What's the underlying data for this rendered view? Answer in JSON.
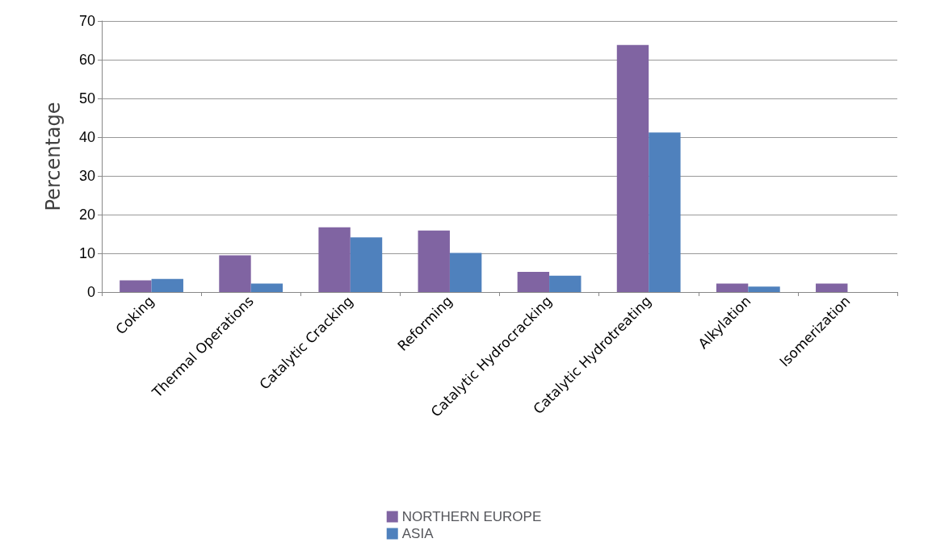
{
  "chart_data": {
    "type": "bar",
    "ylabel": "Percentage",
    "categories": [
      "Coking",
      "Thermal Operations",
      "Catalytic Cracking",
      "Reforming",
      "Catalytic Hydrocracking",
      "Catalytic Hydrotreating",
      "Alkylation",
      "Isomerization"
    ],
    "series": [
      {
        "name": "NORTHERN EUROPE",
        "color": "#8064a2",
        "values": [
          3.0,
          9.5,
          16.7,
          15.9,
          5.2,
          63.8,
          2.2,
          2.2
        ]
      },
      {
        "name": "ASIA",
        "color": "#4f81bd",
        "values": [
          3.4,
          2.2,
          14.1,
          10.1,
          4.2,
          41.2,
          1.4,
          0
        ]
      }
    ],
    "ylim": [
      0,
      70
    ],
    "yticks": [
      0,
      10,
      20,
      30,
      40,
      50,
      60,
      70
    ],
    "grid": "y",
    "legend": "bottom"
  }
}
